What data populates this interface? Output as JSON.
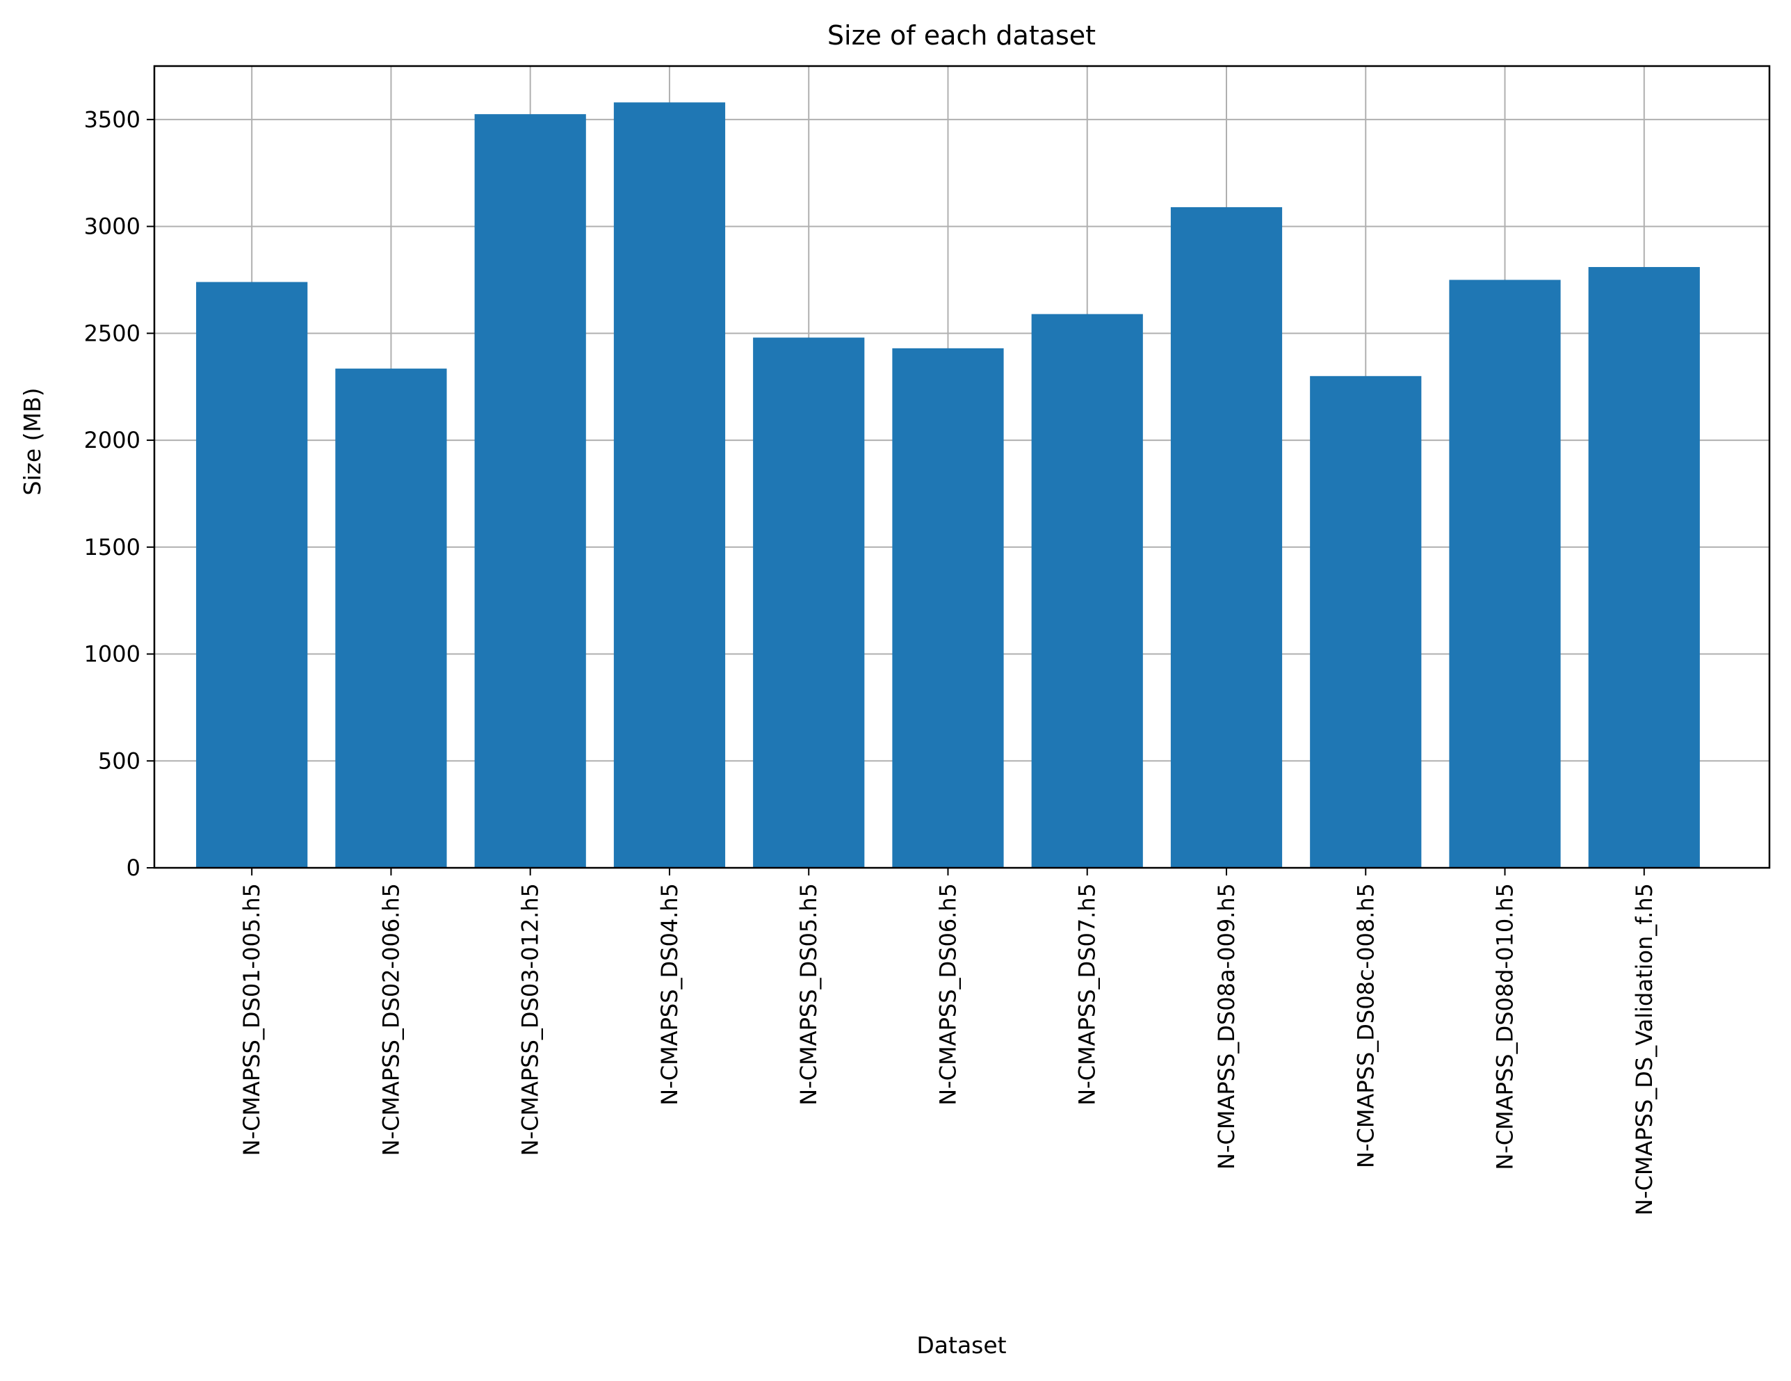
{
  "chart_data": {
    "type": "bar",
    "title": "Size of each dataset",
    "xlabel": "Dataset",
    "ylabel": "Size (MB)",
    "categories": [
      "N-CMAPSS_DS01-005.h5",
      "N-CMAPSS_DS02-006.h5",
      "N-CMAPSS_DS03-012.h5",
      "N-CMAPSS_DS04.h5",
      "N-CMAPSS_DS05.h5",
      "N-CMAPSS_DS06.h5",
      "N-CMAPSS_DS07.h5",
      "N-CMAPSS_DS08a-009.h5",
      "N-CMAPSS_DS08c-008.h5",
      "N-CMAPSS_DS08d-010.h5",
      "N-CMAPSS_DS_Validation_f.h5"
    ],
    "values": [
      2740,
      2335,
      3525,
      3580,
      2480,
      2430,
      2590,
      3090,
      2300,
      2750,
      2810
    ],
    "ylim": [
      0,
      3750
    ],
    "yticks": [
      0,
      500,
      1000,
      1500,
      2000,
      2500,
      3000,
      3500
    ],
    "grid": true,
    "bar_color": "#1f77b4",
    "grid_color": "#b0b0b0"
  }
}
